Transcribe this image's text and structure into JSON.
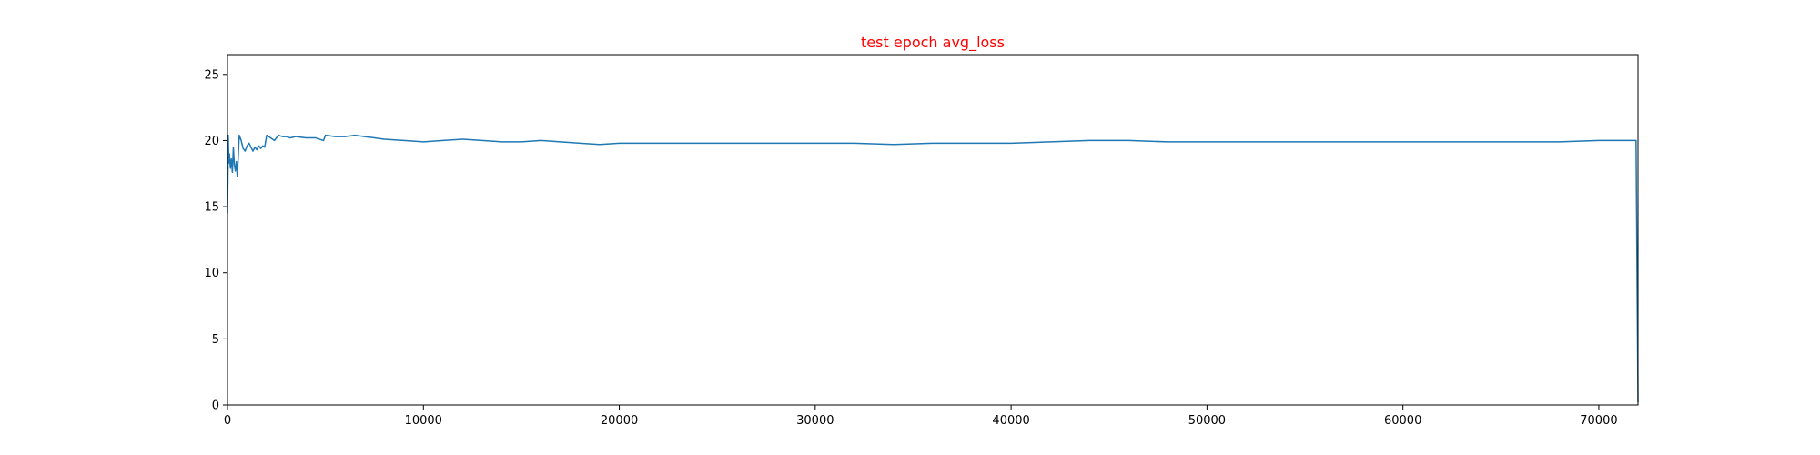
{
  "chart_data": {
    "type": "line",
    "title": "test epoch avg_loss",
    "title_color": "#ff0000",
    "xlabel": "",
    "ylabel": "",
    "xlim": [
      0,
      72000
    ],
    "ylim": [
      0,
      26.5
    ],
    "x_ticks": [
      0,
      10000,
      20000,
      30000,
      40000,
      50000,
      60000,
      70000
    ],
    "x_tick_labels": [
      "0",
      "10000",
      "20000",
      "30000",
      "40000",
      "50000",
      "60000",
      "70000"
    ],
    "y_ticks": [
      0,
      5,
      10,
      15,
      20,
      25
    ],
    "y_tick_labels": [
      "0",
      "5",
      "10",
      "15",
      "20",
      "25"
    ],
    "grid": false,
    "series": [
      {
        "color": "#1f77b4",
        "points": [
          [
            0,
            14.5
          ],
          [
            20,
            17.0
          ],
          [
            40,
            20.4
          ],
          [
            70,
            18.3
          ],
          [
            100,
            19.0
          ],
          [
            150,
            17.9
          ],
          [
            200,
            18.6
          ],
          [
            250,
            17.6
          ],
          [
            300,
            19.5
          ],
          [
            350,
            18.2
          ],
          [
            400,
            17.7
          ],
          [
            450,
            18.4
          ],
          [
            500,
            17.3
          ],
          [
            600,
            20.4
          ],
          [
            700,
            20.0
          ],
          [
            800,
            19.4
          ],
          [
            900,
            19.2
          ],
          [
            1000,
            19.6
          ],
          [
            1100,
            19.8
          ],
          [
            1200,
            19.5
          ],
          [
            1300,
            19.2
          ],
          [
            1400,
            19.5
          ],
          [
            1500,
            19.3
          ],
          [
            1600,
            19.6
          ],
          [
            1700,
            19.4
          ],
          [
            1800,
            19.6
          ],
          [
            1900,
            19.5
          ],
          [
            2000,
            20.4
          ],
          [
            2200,
            20.2
          ],
          [
            2400,
            20.0
          ],
          [
            2600,
            20.4
          ],
          [
            2800,
            20.3
          ],
          [
            3000,
            20.3
          ],
          [
            3200,
            20.2
          ],
          [
            3500,
            20.3
          ],
          [
            4000,
            20.2
          ],
          [
            4500,
            20.2
          ],
          [
            4900,
            20.0
          ],
          [
            5000,
            20.4
          ],
          [
            5500,
            20.3
          ],
          [
            6000,
            20.3
          ],
          [
            6500,
            20.4
          ],
          [
            7000,
            20.3
          ],
          [
            7500,
            20.2
          ],
          [
            8000,
            20.1
          ],
          [
            9000,
            20.0
          ],
          [
            10000,
            19.9
          ],
          [
            11000,
            20.0
          ],
          [
            12000,
            20.1
          ],
          [
            13000,
            20.0
          ],
          [
            14000,
            19.9
          ],
          [
            15000,
            19.9
          ],
          [
            16000,
            20.0
          ],
          [
            17000,
            19.9
          ],
          [
            18000,
            19.8
          ],
          [
            19000,
            19.7
          ],
          [
            20000,
            19.8
          ],
          [
            22000,
            19.8
          ],
          [
            24000,
            19.8
          ],
          [
            26000,
            19.8
          ],
          [
            28000,
            19.8
          ],
          [
            30000,
            19.8
          ],
          [
            32000,
            19.8
          ],
          [
            34000,
            19.7
          ],
          [
            36000,
            19.8
          ],
          [
            38000,
            19.8
          ],
          [
            40000,
            19.8
          ],
          [
            42000,
            19.9
          ],
          [
            44000,
            20.0
          ],
          [
            46000,
            20.0
          ],
          [
            48000,
            19.9
          ],
          [
            50000,
            19.9
          ],
          [
            52000,
            19.9
          ],
          [
            54000,
            19.9
          ],
          [
            56000,
            19.9
          ],
          [
            58000,
            19.9
          ],
          [
            60000,
            19.9
          ],
          [
            62000,
            19.9
          ],
          [
            64000,
            19.9
          ],
          [
            66000,
            19.9
          ],
          [
            68000,
            19.9
          ],
          [
            70000,
            20.0
          ],
          [
            71900,
            20.0
          ],
          [
            72000,
            0.2
          ]
        ]
      }
    ]
  }
}
